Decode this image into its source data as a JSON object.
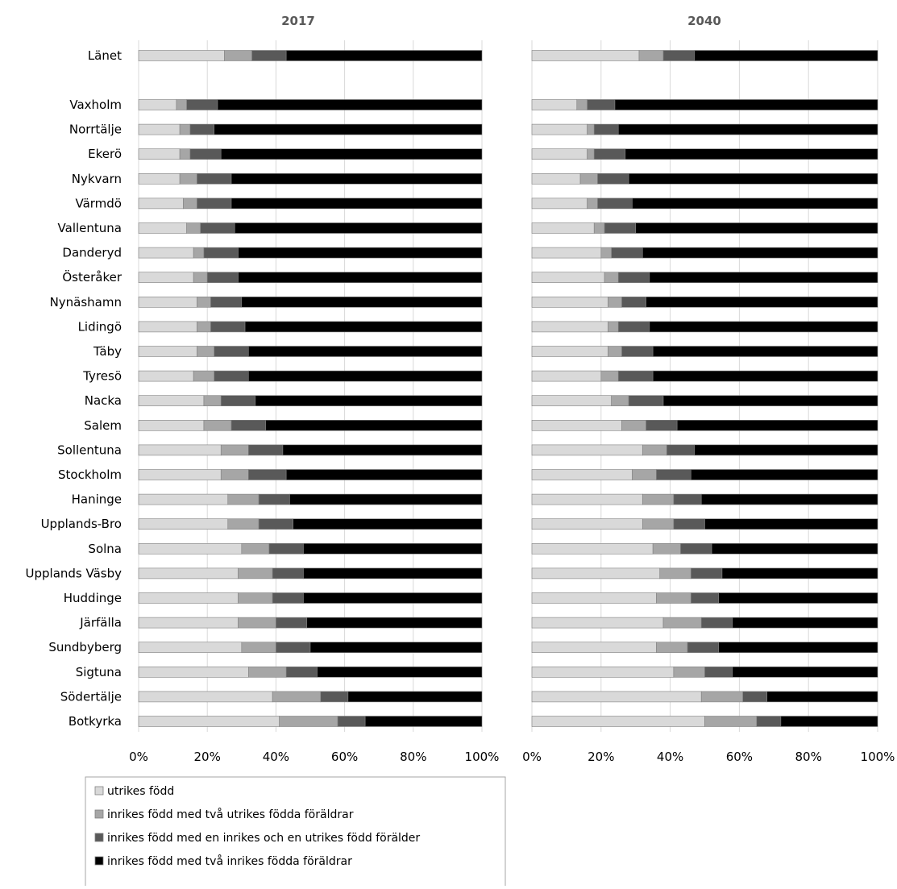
{
  "chart_data": {
    "type": "bar",
    "orientation": "horizontal",
    "stacked": "percent",
    "grid": true,
    "legend_position": "bottom-left",
    "categories": [
      "Länet",
      "Vaxholm",
      "Norrtälje",
      "Ekerö",
      "Nykvarn",
      "Värmdö",
      "Vallentuna",
      "Danderyd",
      "Österåker",
      "Nynäshamn",
      "Lidingö",
      "Täby",
      "Tyresö",
      "Nacka",
      "Salem",
      "Sollentuna",
      "Stockholm",
      "Haninge",
      "Upplands-Bro",
      "Solna",
      "Upplands Väsby",
      "Huddinge",
      "Järfälla",
      "Sundbyberg",
      "Sigtuna",
      "Södertälje",
      "Botkyrka"
    ],
    "xticks": [
      "0%",
      "20%",
      "40%",
      "60%",
      "80%",
      "100%"
    ],
    "xlim": [
      0,
      100
    ],
    "colors": [
      "#d9d9d9",
      "#a6a6a6",
      "#595959",
      "#000000"
    ],
    "series_names": [
      "utrikes född",
      "inrikes född med två utrikes födda föräldrar",
      "inrikes född med en inrikes och en utrikes född förälder",
      "inrikes född med två inrikes födda föräldrar"
    ],
    "panels": [
      {
        "title": "2017",
        "values": [
          [
            25,
            8,
            10,
            57
          ],
          [
            11,
            3,
            9,
            77
          ],
          [
            12,
            3,
            7,
            78
          ],
          [
            12,
            3,
            9,
            76
          ],
          [
            12,
            5,
            10,
            73
          ],
          [
            13,
            4,
            10,
            73
          ],
          [
            14,
            4,
            10,
            72
          ],
          [
            16,
            3,
            10,
            71
          ],
          [
            16,
            4,
            9,
            71
          ],
          [
            17,
            4,
            9,
            70
          ],
          [
            17,
            4,
            10,
            69
          ],
          [
            17,
            5,
            10,
            68
          ],
          [
            16,
            6,
            10,
            68
          ],
          [
            19,
            5,
            10,
            66
          ],
          [
            19,
            8,
            10,
            63
          ],
          [
            24,
            8,
            10,
            58
          ],
          [
            24,
            8,
            11,
            57
          ],
          [
            26,
            9,
            9,
            56
          ],
          [
            26,
            9,
            10,
            55
          ],
          [
            30,
            8,
            10,
            52
          ],
          [
            29,
            10,
            9,
            52
          ],
          [
            29,
            10,
            9,
            52
          ],
          [
            29,
            11,
            9,
            51
          ],
          [
            30,
            10,
            10,
            50
          ],
          [
            32,
            11,
            9,
            48
          ],
          [
            39,
            14,
            8,
            39
          ],
          [
            41,
            17,
            8,
            34
          ]
        ]
      },
      {
        "title": "2040",
        "values": [
          [
            31,
            7,
            9,
            53
          ],
          [
            13,
            3,
            8,
            76
          ],
          [
            16,
            2,
            7,
            75
          ],
          [
            16,
            2,
            9,
            73
          ],
          [
            14,
            5,
            9,
            72
          ],
          [
            16,
            3,
            10,
            71
          ],
          [
            18,
            3,
            9,
            70
          ],
          [
            20,
            3,
            9,
            68
          ],
          [
            21,
            4,
            9,
            66
          ],
          [
            22,
            4,
            7,
            67
          ],
          [
            22,
            3,
            9,
            66
          ],
          [
            22,
            4,
            9,
            65
          ],
          [
            20,
            5,
            10,
            65
          ],
          [
            23,
            5,
            10,
            62
          ],
          [
            26,
            7,
            9,
            58
          ],
          [
            32,
            7,
            8,
            53
          ],
          [
            29,
            7,
            10,
            54
          ],
          [
            32,
            9,
            8,
            51
          ],
          [
            32,
            9,
            9,
            50
          ],
          [
            35,
            8,
            9,
            48
          ],
          [
            37,
            9,
            9,
            45
          ],
          [
            36,
            10,
            8,
            46
          ],
          [
            38,
            11,
            9,
            42
          ],
          [
            36,
            9,
            9,
            46
          ],
          [
            41,
            9,
            8,
            42
          ],
          [
            49,
            12,
            7,
            32
          ],
          [
            50,
            15,
            7,
            28
          ]
        ]
      }
    ]
  }
}
